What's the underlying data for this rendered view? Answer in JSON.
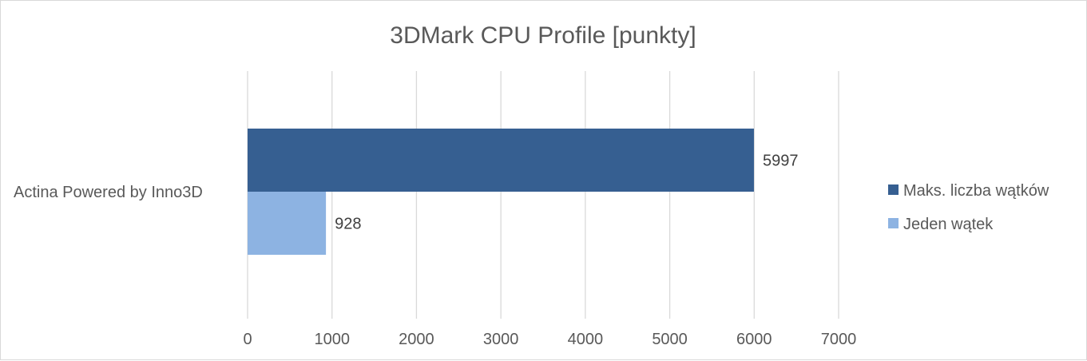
{
  "chart_data": {
    "type": "bar",
    "orientation": "horizontal",
    "title": "3DMark CPU Profile [punkty]",
    "xlabel": "",
    "ylabel": "",
    "categories": [
      "Actina Powered by Inno3D"
    ],
    "series": [
      {
        "name": "Maks. liczba wątków",
        "values": [
          5997
        ],
        "color": "#365f91"
      },
      {
        "name": "Jeden wątek",
        "values": [
          928
        ],
        "color": "#8db3e2"
      }
    ],
    "xlim": [
      0,
      7000
    ],
    "xticks": [
      0,
      1000,
      2000,
      3000,
      4000,
      5000,
      6000,
      7000
    ],
    "xtick_labels": [
      "0",
      "1000",
      "2000",
      "3000",
      "4000",
      "5000",
      "6000",
      "7000"
    ],
    "grid": "vertical",
    "legend": "right",
    "data_labels": true
  }
}
